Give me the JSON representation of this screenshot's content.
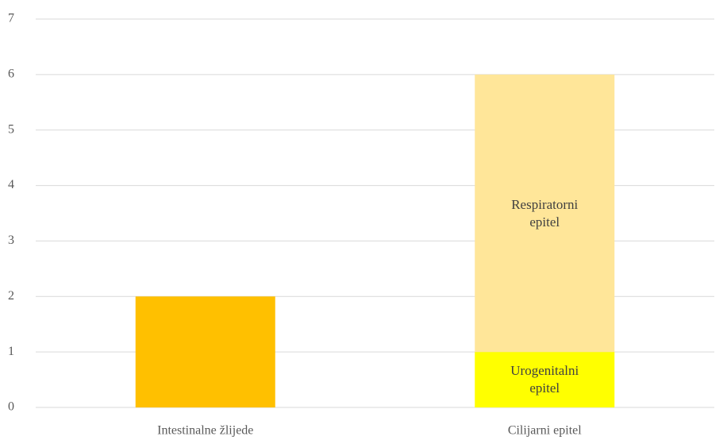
{
  "chart_data": {
    "type": "stacked_bar",
    "categories": [
      "Intestinalne žlijede",
      "Cilijarni epitel"
    ],
    "series": [
      {
        "color": "#ffc000",
        "values": [
          2,
          null
        ]
      },
      {
        "name": "Urogenitalni epitel",
        "color": "#ffff00",
        "values": [
          null,
          1
        ]
      },
      {
        "name": "Respiratorni epitel",
        "color": "#ffe699",
        "values": [
          null,
          5
        ]
      }
    ],
    "ylim": [
      0,
      7
    ],
    "yticks": [
      0,
      1,
      2,
      3,
      4,
      5,
      6,
      7
    ],
    "grid": true
  }
}
